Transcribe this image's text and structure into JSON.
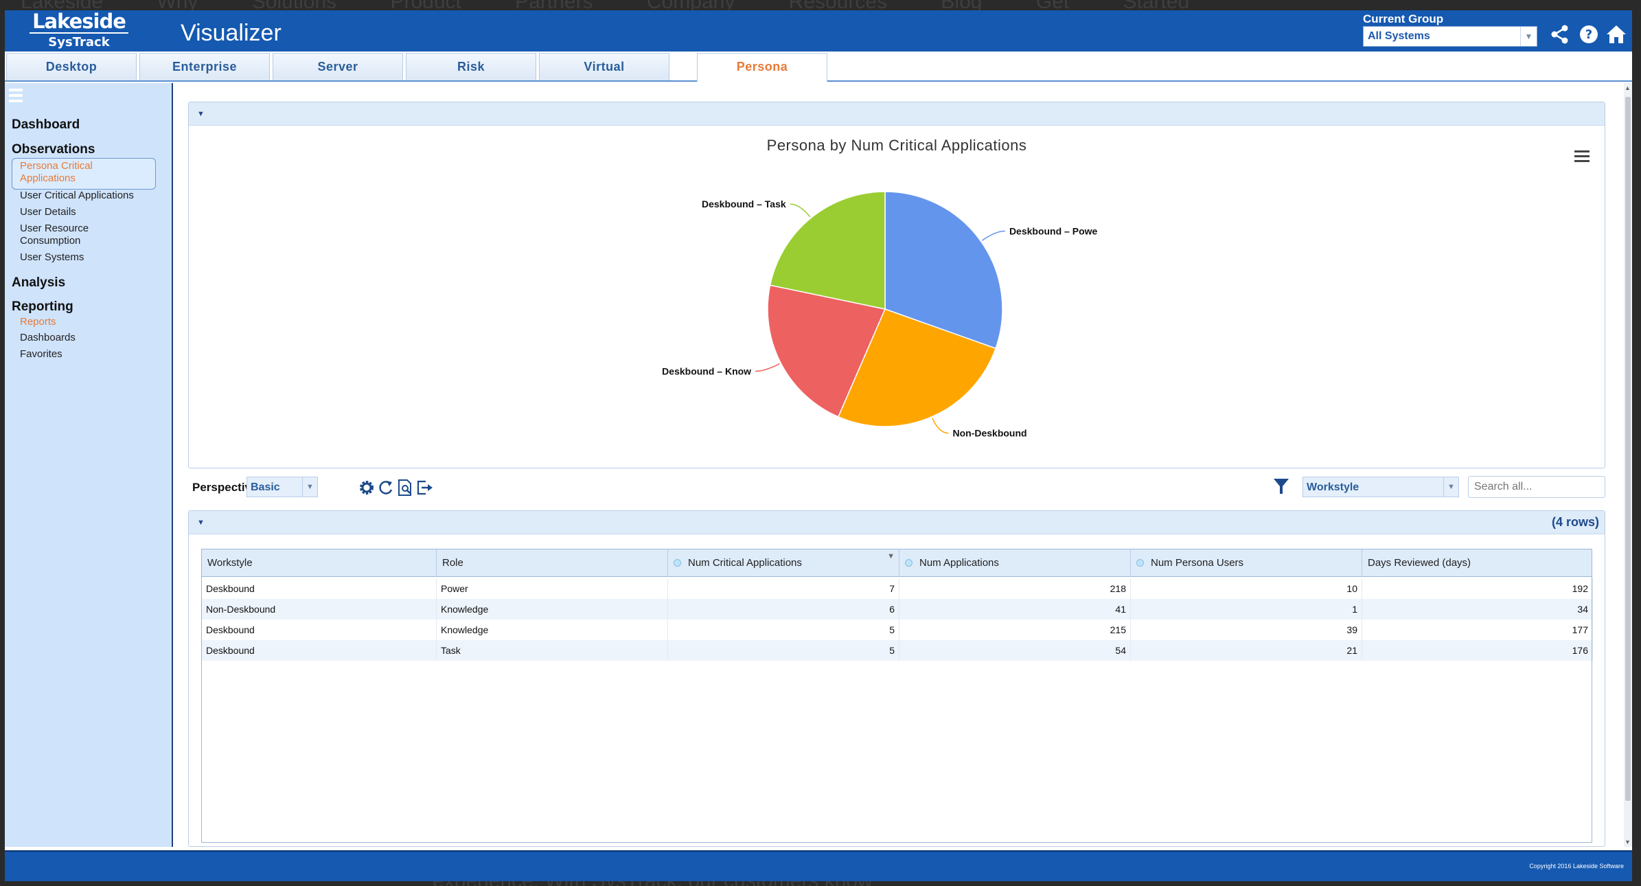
{
  "background_page": {
    "nav_text": "Lakeside Why Solutions Product Partners Company Resources Blog Get Started",
    "bottom_text": "experience. With SysTrack, our customers know"
  },
  "header": {
    "logo_line1": "Lakeside",
    "logo_line2": "SysTrack",
    "app_title": "Visualizer",
    "current_group_label": "Current Group",
    "current_group_value": "All Systems",
    "icons": [
      "share-icon",
      "help-icon",
      "home-icon"
    ]
  },
  "tabs": [
    {
      "label": "Desktop",
      "active": false
    },
    {
      "label": "Enterprise",
      "active": false
    },
    {
      "label": "Server",
      "active": false
    },
    {
      "label": "Risk",
      "active": false
    },
    {
      "label": "Virtual Infrastructure",
      "active": false
    },
    {
      "label": "Persona",
      "active": true
    }
  ],
  "sidebar": {
    "dashboard": "Dashboard",
    "observations": "Observations",
    "observation_items": [
      {
        "label": "Persona Critical Applications",
        "selected": true
      },
      {
        "label": "User Critical Applications"
      },
      {
        "label": "User Details"
      },
      {
        "label": "User Resource Consumption"
      },
      {
        "label": "User Systems"
      }
    ],
    "analysis": "Analysis",
    "reporting": "Reporting",
    "reporting_items": [
      {
        "label": "Reports",
        "highlight": true
      },
      {
        "label": "Dashboards"
      },
      {
        "label": "Favorites"
      }
    ]
  },
  "chart_data": {
    "type": "pie",
    "title": "Persona by Num Critical Applications",
    "slices": [
      {
        "label": "Deskbound – Powe",
        "value": 7,
        "color": "#6495ed"
      },
      {
        "label": "Non-Deskbound",
        "value": 6,
        "color": "#ffa500"
      },
      {
        "label": "Deskbound – Know",
        "value": 5,
        "color": "#ee6161"
      },
      {
        "label": "Deskbound – Task",
        "value": 5,
        "color": "#9acd32"
      }
    ]
  },
  "toolbar": {
    "perspective_label": "Perspective:",
    "perspective_value": "Basic",
    "filter_value": "Workstyle",
    "search_placeholder": "Search all..."
  },
  "table": {
    "row_count": "(4 rows)",
    "columns": [
      "Workstyle",
      "Role",
      "Num Critical Applications",
      "Num Applications",
      "Num Persona Users",
      "Days Reviewed (days)"
    ],
    "rows": [
      [
        "Deskbound",
        "Power",
        "7",
        "218",
        "10",
        "192"
      ],
      [
        "Non-Deskbound",
        "Knowledge",
        "6",
        "41",
        "1",
        "34"
      ],
      [
        "Deskbound",
        "Knowledge",
        "5",
        "215",
        "39",
        "177"
      ],
      [
        "Deskbound",
        "Task",
        "5",
        "54",
        "21",
        "176"
      ]
    ]
  },
  "footer": {
    "copyright": "Copyright 2016 Lakeside Software"
  }
}
